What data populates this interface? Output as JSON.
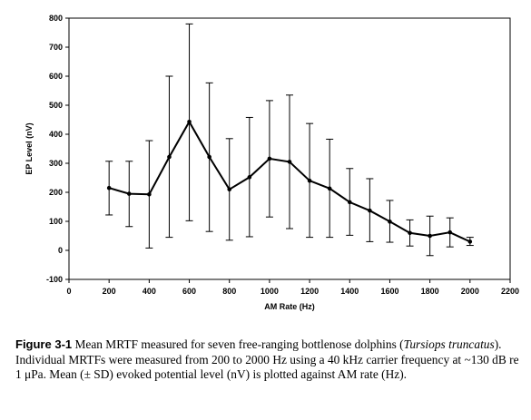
{
  "chart_data": {
    "type": "line",
    "xlabel": "AM Rate (Hz)",
    "ylabel": "EP Level (nV)",
    "xlim": [
      0,
      2200
    ],
    "ylim": [
      -100,
      800
    ],
    "xticks": [
      0,
      200,
      400,
      600,
      800,
      1000,
      1200,
      1400,
      1600,
      1800,
      2000,
      2200
    ],
    "yticks": [
      -100,
      0,
      100,
      200,
      300,
      400,
      500,
      600,
      700,
      800
    ],
    "grid": false,
    "legend": "none",
    "series": [
      {
        "x": [
          200,
          300,
          400,
          500,
          600,
          700,
          800,
          900,
          1000,
          1100,
          1200,
          1300,
          1400,
          1500,
          1600,
          1700,
          1800,
          1900,
          2000
        ],
        "y": [
          215,
          195,
          193,
          322,
          443,
          322,
          210,
          252,
          316,
          305,
          240,
          213,
          166,
          137,
          99,
          60,
          50,
          62,
          30
        ],
        "error_lower": [
          122,
          82,
          8,
          45,
          102,
          65,
          35,
          47,
          115,
          75,
          45,
          45,
          52,
          30,
          28,
          15,
          -18,
          12,
          17
        ],
        "error_upper": [
          307,
          307,
          378,
          600,
          780,
          577,
          385,
          458,
          516,
          535,
          437,
          383,
          282,
          247,
          172,
          105,
          118,
          112,
          45
        ]
      }
    ]
  },
  "caption": {
    "label": "Figure 3-1",
    "text_before_species": "  Mean MRTF measured for seven free-ranging bottlenose dolphins (",
    "species": "Tursiops truncatus",
    "text_after_species": ").  Individual MRTFs were measured from 200 to 2000 Hz using a 40 kHz carrier frequency at ~130 dB re 1 μPa.  Mean (± SD) evoked potential level (nV) is plotted against AM rate (Hz)."
  }
}
